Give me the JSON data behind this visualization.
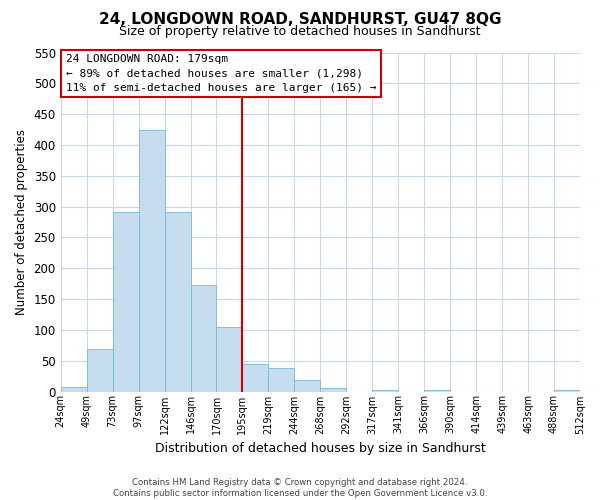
{
  "title": "24, LONGDOWN ROAD, SANDHURST, GU47 8QG",
  "subtitle": "Size of property relative to detached houses in Sandhurst",
  "bar_values": [
    8,
    69,
    292,
    424,
    291,
    173,
    105,
    44,
    38,
    19,
    6,
    0,
    2,
    0,
    2,
    0,
    0,
    0,
    0,
    2
  ],
  "bin_labels": [
    "24sqm",
    "49sqm",
    "73sqm",
    "97sqm",
    "122sqm",
    "146sqm",
    "170sqm",
    "195sqm",
    "219sqm",
    "244sqm",
    "268sqm",
    "292sqm",
    "317sqm",
    "341sqm",
    "366sqm",
    "390sqm",
    "414sqm",
    "439sqm",
    "463sqm",
    "488sqm",
    "512sqm"
  ],
  "bar_color": "#c6ddef",
  "bar_edge_color": "#7bb8d4",
  "ylabel": "Number of detached properties",
  "xlabel": "Distribution of detached houses by size in Sandhurst",
  "ylim": [
    0,
    550
  ],
  "yticks": [
    0,
    50,
    100,
    150,
    200,
    250,
    300,
    350,
    400,
    450,
    500,
    550
  ],
  "vline_color": "#cc0000",
  "annotation_title": "24 LONGDOWN ROAD: 179sqm",
  "annotation_line1": "← 89% of detached houses are smaller (1,298)",
  "annotation_line2": "11% of semi-detached houses are larger (165) →",
  "annotation_box_color": "#ffffff",
  "annotation_box_edge": "#cc0000",
  "footer_line1": "Contains HM Land Registry data © Crown copyright and database right 2024.",
  "footer_line2": "Contains public sector information licensed under the Open Government Licence v3.0.",
  "background_color": "#ffffff",
  "grid_color": "#c8d8e8"
}
